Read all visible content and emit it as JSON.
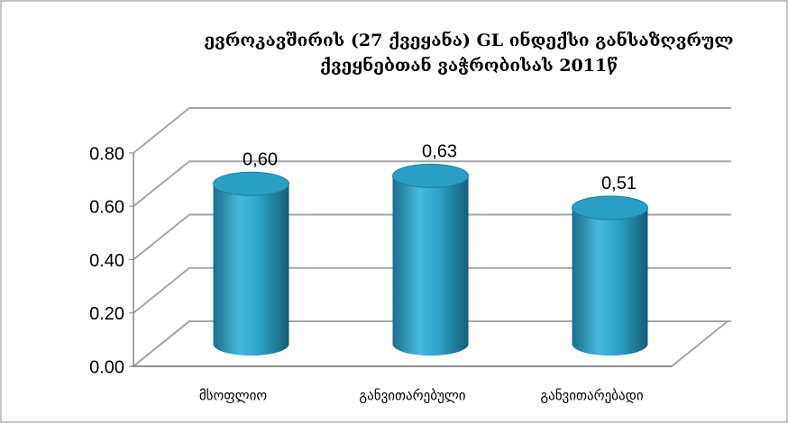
{
  "chart_data": {
    "type": "bar3d",
    "title_lines": [
      "ევროკავშირის (27 ქვეყანა) GL ინდექსი განსაზღვრულ",
      "ქვეყნებთან ვაჭრობისას 2011წ"
    ],
    "categories": [
      "მსოფლიო",
      "განვითარებული",
      "განვითარებადი"
    ],
    "values": [
      0.6,
      0.63,
      0.51
    ],
    "value_labels": [
      "0,60",
      "0,63",
      "0,51"
    ],
    "color": "#2a9fc4",
    "ylim": [
      0,
      0.8
    ],
    "yticks": [
      {
        "value": 0,
        "label": "0.00"
      },
      {
        "value": 0.2,
        "label": "0.20"
      },
      {
        "value": 0.4,
        "label": "0.40"
      },
      {
        "value": 0.6,
        "label": "0.60"
      },
      {
        "value": 0.8,
        "label": "0.80"
      }
    ],
    "grid": true
  }
}
